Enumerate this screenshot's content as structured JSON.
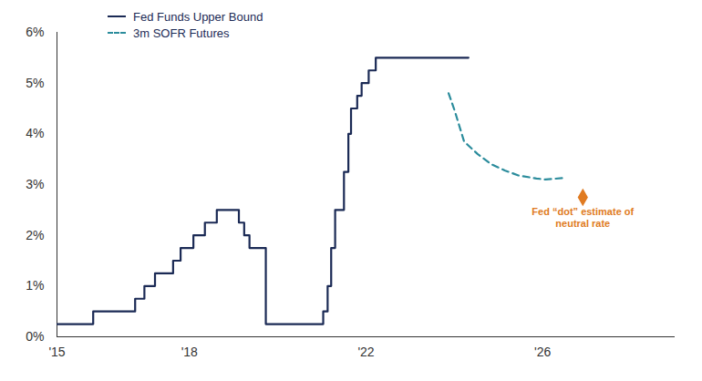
{
  "chart_data": {
    "type": "line",
    "xlim": [
      2015,
      2029
    ],
    "xticks": [
      {
        "value": 2015,
        "label": "'15"
      },
      {
        "value": 2018,
        "label": "'18"
      },
      {
        "value": 2022,
        "label": "'22"
      },
      {
        "value": 2026,
        "label": "'26"
      }
    ],
    "ylim": [
      0,
      6
    ],
    "yticks": [
      {
        "value": 0,
        "label": "0%"
      },
      {
        "value": 1,
        "label": "1%"
      },
      {
        "value": 2,
        "label": "2%"
      },
      {
        "value": 3,
        "label": "3%"
      },
      {
        "value": 4,
        "label": "4%"
      },
      {
        "value": 5,
        "label": "5%"
      },
      {
        "value": 6,
        "label": "6%"
      }
    ],
    "grid": false,
    "legend": "top-left",
    "series": [
      {
        "name": "Fed Funds Upper Bound",
        "color": "#1b2a55",
        "type": "step",
        "line_style": "solid",
        "x": [
          2015,
          2015.82,
          2016.77,
          2016.98,
          2017.22,
          2017.63,
          2017.8,
          2018.09,
          2018.35,
          2018.62,
          2019.12,
          2019.24,
          2019.36,
          2019.73,
          2021.03,
          2021.13,
          2021.21,
          2021.3,
          2021.38,
          2021.5,
          2021.6,
          2021.66,
          2021.8,
          2021.9,
          2022.06,
          2022.22,
          2024.32
        ],
        "values": [
          0.25,
          0.5,
          0.75,
          1.0,
          1.25,
          1.5,
          1.75,
          2.0,
          2.25,
          2.5,
          2.25,
          2.0,
          1.75,
          0.25,
          0.5,
          1.0,
          1.75,
          2.5,
          2.5,
          3.25,
          4.0,
          4.5,
          4.75,
          5.0,
          5.25,
          5.5,
          5.5
        ]
      },
      {
        "name": "3m SOFR Futures",
        "color": "#2b8c9c",
        "type": "line",
        "line_style": "dashed",
        "x": [
          2023.87,
          2024.01,
          2024.22,
          2024.53,
          2024.84,
          2025.14,
          2025.45,
          2025.86,
          2026.07,
          2026.48
        ],
        "values": [
          4.8,
          4.45,
          3.85,
          3.6,
          3.4,
          3.28,
          3.18,
          3.12,
          3.1,
          3.13
        ]
      }
    ],
    "annotations": [
      {
        "text": "Fed “dot” estimate of\nneutral rate",
        "x": 2026.91,
        "y": 2.75,
        "color": "#e07b22",
        "marker": "diamond"
      }
    ]
  }
}
